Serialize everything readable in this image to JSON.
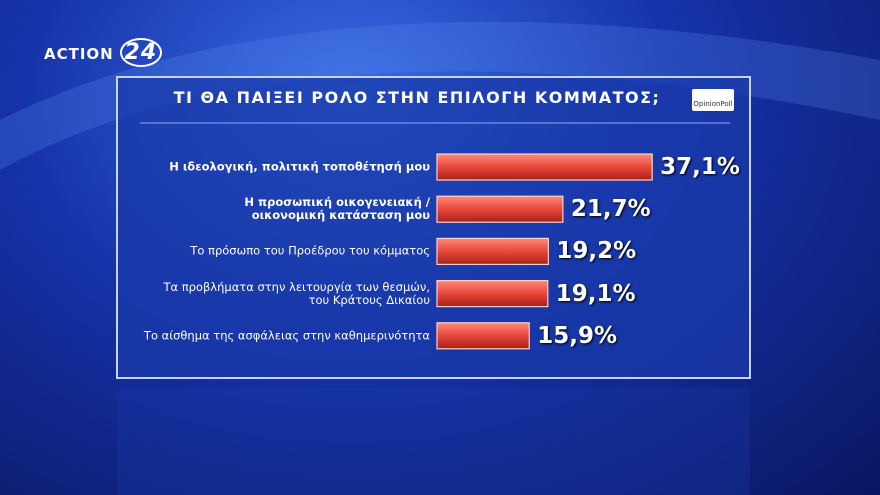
{
  "logo": "ACTION",
  "logo_number": "24",
  "source": "OpinionPoll",
  "chart_data": {
    "type": "bar",
    "orientation": "horizontal",
    "title": "ΤΙ ΘΑ ΠΑΙΞΕΙ ΡΟΛΟ ΣΤΗΝ ΕΠΙΛΟΓΗ ΚΟΜΜΑΤΟΣ;",
    "categories": [
      "Η ιδεολογική, πολιτική τοποθέτησή μου",
      "Η προσωπική οικογενειακή /\nοικονομική κατάσταση μου",
      "Το πρόσωπο του Προέδρου του κόμματος",
      "Τα προβλήματα στην λειτουργία των θεσμών,\nτου Κράτους Δικαίου",
      "Το αίσθημα της ασφάλειας στην καθημερινότητα"
    ],
    "values": [
      37.1,
      21.7,
      19.2,
      19.1,
      15.9
    ],
    "value_labels": [
      "37,1%",
      "21,7%",
      "19,2%",
      "19,1%",
      "15,9%"
    ],
    "color": "#e8473a"
  }
}
